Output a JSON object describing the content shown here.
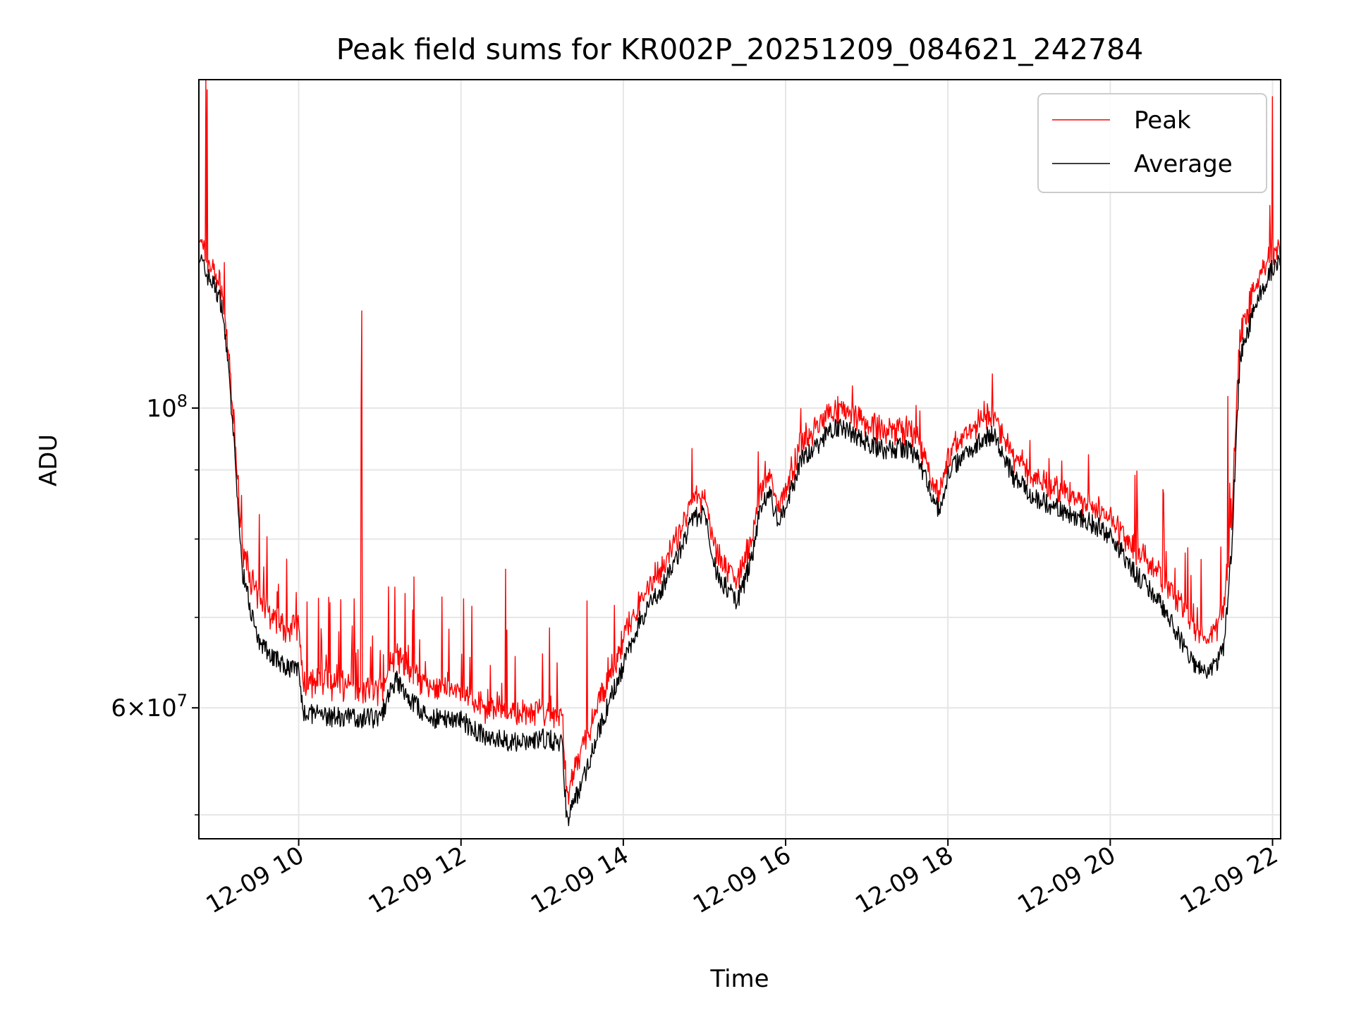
{
  "chart_data": {
    "type": "line",
    "title": "Peak field sums for KR002P_20251209_084621_242784",
    "xlabel": "Time",
    "ylabel": "ADU",
    "yscale": "log",
    "xlim_hours": [
      8.77,
      22.1
    ],
    "ylim": [
      48000000,
      175000000
    ],
    "grid": true,
    "legend_position": "top-right",
    "x_ticks": [
      {
        "hour": 10,
        "label": "12-09 10"
      },
      {
        "hour": 12,
        "label": "12-09 12"
      },
      {
        "hour": 14,
        "label": "12-09 14"
      },
      {
        "hour": 16,
        "label": "12-09 16"
      },
      {
        "hour": 18,
        "label": "12-09 18"
      },
      {
        "hour": 20,
        "label": "12-09 20"
      },
      {
        "hour": 22,
        "label": "12-09 22"
      }
    ],
    "y_major_ticks": [
      {
        "value": 100000000,
        "base": "10",
        "exp": "8",
        "mantissa": ""
      },
      {
        "value": 60000000,
        "base": "10",
        "exp": "7",
        "mantissa": "6×"
      }
    ],
    "y_minor_ticks": [
      50000000,
      70000000,
      80000000,
      90000000
    ],
    "series": [
      {
        "name": "Peak",
        "color": "#ff0000",
        "x_hours": [
          8.77,
          8.85,
          8.95,
          9.05,
          9.1,
          9.2,
          9.3,
          9.5,
          9.8,
          10.0,
          10.05,
          10.5,
          11.0,
          11.2,
          11.3,
          11.6,
          12.0,
          12.2,
          12.5,
          12.8,
          13.0,
          13.25,
          13.3,
          13.5,
          13.8,
          14.0,
          14.2,
          14.5,
          14.7,
          14.85,
          15.0,
          15.1,
          15.2,
          15.4,
          15.5,
          15.6,
          15.7,
          15.8,
          15.9,
          16.0,
          16.2,
          16.4,
          16.6,
          16.8,
          17.0,
          17.2,
          17.4,
          17.6,
          17.8,
          17.9,
          18.0,
          18.2,
          18.5,
          18.6,
          18.8,
          19.0,
          19.3,
          19.6,
          19.8,
          20.0,
          20.3,
          20.6,
          20.8,
          21.0,
          21.2,
          21.4,
          21.5,
          21.6,
          21.7,
          21.8,
          21.9,
          22.0,
          22.1
        ],
        "values": [
          132000000,
          128000000,
          125000000,
          121000000,
          114000000,
          96000000,
          78000000,
          71000000,
          68000000,
          68000000,
          62000000,
          61500000,
          61000000,
          65000000,
          63500000,
          61500000,
          61000000,
          59500000,
          59000000,
          58500000,
          59000000,
          58500000,
          51000000,
          55500000,
          62000000,
          66500000,
          71000000,
          75500000,
          80000000,
          84000000,
          85500000,
          79000000,
          76500000,
          73500000,
          76000000,
          80000000,
          86500000,
          88000000,
          84000000,
          86000000,
          93000000,
          96000000,
          99000000,
          98000000,
          96500000,
          95000000,
          95500000,
          94000000,
          88000000,
          85000000,
          91000000,
          94500000,
          97500000,
          97000000,
          91000000,
          88500000,
          86500000,
          84500000,
          83500000,
          82000000,
          77500000,
          74500000,
          71500000,
          68500000,
          66500000,
          69500000,
          82000000,
          112000000,
          117000000,
          122000000,
          126000000,
          129000000,
          130000000
        ]
      },
      {
        "name": "Average",
        "color": "#000000",
        "x_hours": [
          8.77,
          8.85,
          8.95,
          9.05,
          9.1,
          9.2,
          9.3,
          9.5,
          9.8,
          10.0,
          10.05,
          10.5,
          11.0,
          11.2,
          11.3,
          11.6,
          12.0,
          12.2,
          12.5,
          12.8,
          13.0,
          13.25,
          13.3,
          13.5,
          13.8,
          14.0,
          14.2,
          14.5,
          14.7,
          14.85,
          15.0,
          15.1,
          15.2,
          15.4,
          15.5,
          15.6,
          15.7,
          15.8,
          15.9,
          16.0,
          16.2,
          16.4,
          16.6,
          16.8,
          17.0,
          17.2,
          17.4,
          17.6,
          17.8,
          17.9,
          18.0,
          18.2,
          18.5,
          18.6,
          18.8,
          19.0,
          19.3,
          19.6,
          19.8,
          20.0,
          20.3,
          20.6,
          20.8,
          21.0,
          21.2,
          21.4,
          21.5,
          21.6,
          21.7,
          21.8,
          21.9,
          22.0,
          22.1
        ],
        "values": [
          130000000,
          126000000,
          123500000,
          119500000,
          112500000,
          94500000,
          76000000,
          67000000,
          64500000,
          64000000,
          59500000,
          59000000,
          59000000,
          63000000,
          61500000,
          59000000,
          58800000,
          57500000,
          56800000,
          56500000,
          57000000,
          56500000,
          49500000,
          53000000,
          60000000,
          64500000,
          69500000,
          74000000,
          78500000,
          82500000,
          84000000,
          77000000,
          74500000,
          72000000,
          74500000,
          78500000,
          85000000,
          86500000,
          82500000,
          84500000,
          91500000,
          94000000,
          97000000,
          96000000,
          94500000,
          93000000,
          93500000,
          92500000,
          86500000,
          83500000,
          89500000,
          92500000,
          95500000,
          95000000,
          89000000,
          86500000,
          84500000,
          83000000,
          82000000,
          80500000,
          75500000,
          72000000,
          68500000,
          65000000,
          63500000,
          66000000,
          79000000,
          109000000,
          114500000,
          119500000,
          123500000,
          127000000,
          128500000
        ]
      }
    ]
  }
}
